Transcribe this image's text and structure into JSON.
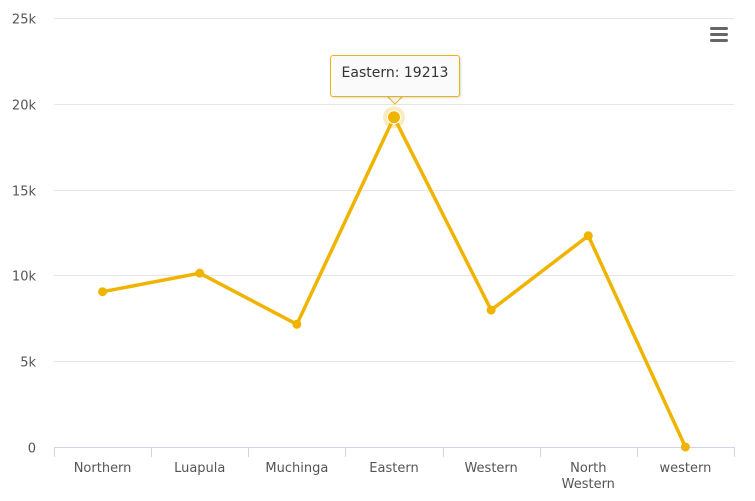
{
  "colors": {
    "series": "#f0b400",
    "grid": "#e6e6e6",
    "axis_line": "#ccd6eb",
    "label": "#555555"
  },
  "menu": {
    "icon": "hamburger-menu-icon"
  },
  "tooltip": {
    "text": "Eastern: 19213"
  },
  "chart_data": {
    "type": "line",
    "categories": [
      "Northern",
      "Luapula",
      "Muchinga",
      "Eastern",
      "Western",
      "North Western",
      "western"
    ],
    "category_lines": [
      [
        "Northern"
      ],
      [
        "Luapula"
      ],
      [
        "Muchinga"
      ],
      [
        "Eastern"
      ],
      [
        "Western"
      ],
      [
        "North",
        "Western"
      ],
      [
        "western"
      ]
    ],
    "series": [
      {
        "values": [
          9050,
          10130,
          7150,
          19213,
          7980,
          12310,
          0
        ]
      }
    ],
    "ylim": [
      0,
      25000
    ],
    "yticks": [
      0,
      5000,
      10000,
      15000,
      20000,
      25000
    ],
    "ytick_labels": [
      "0",
      "5k",
      "10k",
      "15k",
      "20k",
      "25k"
    ],
    "highlighted_index": 3,
    "grid": true,
    "legend": false
  }
}
